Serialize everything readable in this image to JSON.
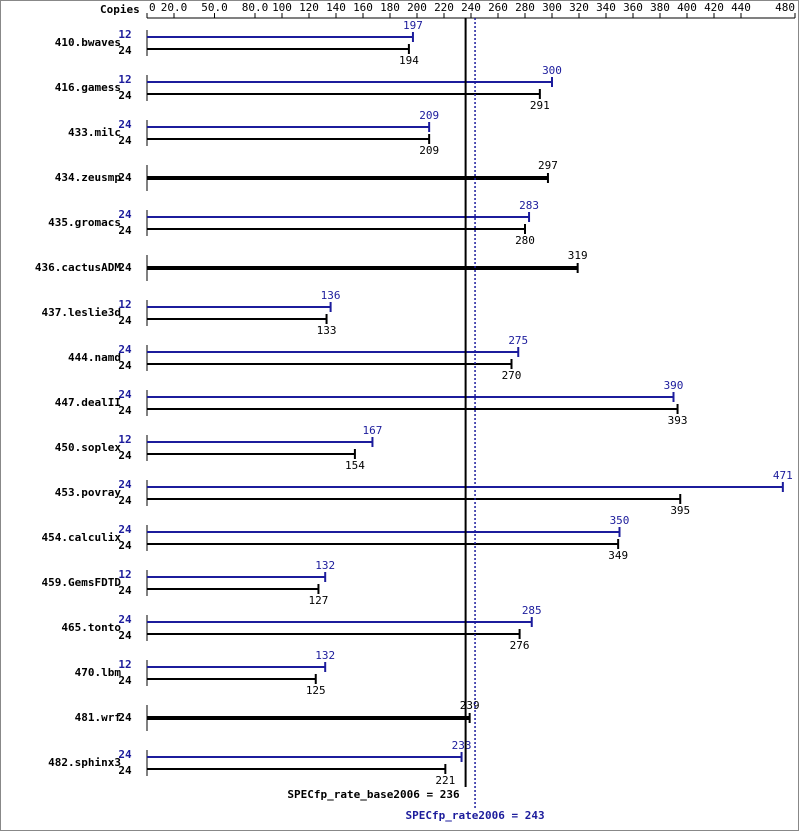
{
  "chart_data": {
    "type": "spec-bar",
    "axis_label": "Copies",
    "categories": [
      "410.bwaves",
      "416.gamess",
      "433.milc",
      "434.zeusmp",
      "435.gromacs",
      "436.cactusADM",
      "437.leslie3d",
      "444.namd",
      "447.dealII",
      "450.soplex",
      "453.povray",
      "454.calculix",
      "459.GemsFDTD",
      "465.tonto",
      "470.lbm",
      "481.wrf",
      "482.sphinx3"
    ],
    "series": [
      {
        "color": "#1c1c9c",
        "copies": [
          12,
          12,
          24,
          null,
          24,
          null,
          12,
          24,
          24,
          12,
          24,
          24,
          12,
          24,
          12,
          null,
          24
        ],
        "values": [
          197,
          300,
          209,
          null,
          283,
          null,
          136,
          275,
          390,
          167,
          471,
          350,
          132,
          285,
          132,
          null,
          233
        ]
      },
      {
        "color": "#000000",
        "copies": [
          24,
          24,
          24,
          24,
          24,
          24,
          24,
          24,
          24,
          24,
          24,
          24,
          24,
          24,
          24,
          24,
          24
        ],
        "values": [
          194,
          291,
          209,
          297,
          280,
          319,
          133,
          270,
          393,
          154,
          395,
          349,
          127,
          276,
          125,
          239,
          221
        ]
      }
    ],
    "xlim": [
      0,
      480
    ],
    "xticks": [
      0,
      {
        "value": 20,
        "label": "20.0"
      },
      {
        "value": 50,
        "label": "50.0"
      },
      {
        "value": 80,
        "label": "80.0"
      },
      100,
      120,
      140,
      160,
      180,
      200,
      220,
      240,
      260,
      280,
      300,
      320,
      340,
      360,
      380,
      400,
      420,
      440,
      480
    ],
    "reference_lines": [
      {
        "label": "SPECfp_rate_base2006 = 236",
        "value": 236,
        "color": "#000000",
        "style": "solid"
      },
      {
        "label": "SPECfp_rate2006 = 243",
        "value": 243,
        "color": "#1c1c9c",
        "style": "dotted"
      }
    ]
  }
}
